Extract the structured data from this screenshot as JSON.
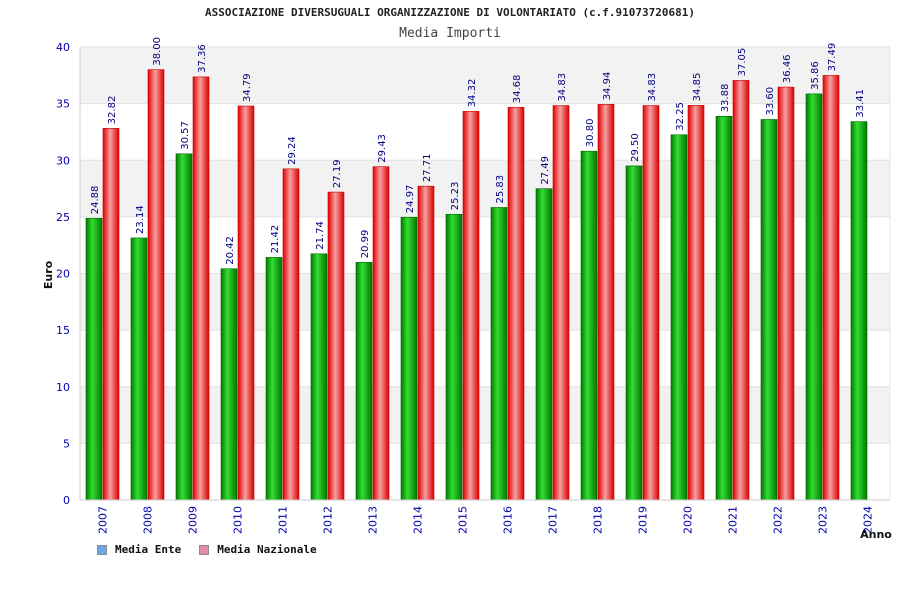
{
  "chart_data": {
    "type": "bar",
    "title": "ASSOCIAZIONE DIVERSUGUALI ORGANIZZAZIONE DI VOLONTARIATO (c.f.91073720681)",
    "subtitle": "Media Importi",
    "ylabel": "Euro",
    "xlabel": "Anno",
    "ylim": [
      0,
      40
    ],
    "yticks": [
      0,
      5,
      10,
      15,
      20,
      25,
      30,
      35,
      40
    ],
    "grid": true,
    "legend_position": "bottom-left",
    "categories": [
      "2007",
      "2008",
      "2009",
      "2010",
      "2011",
      "2012",
      "2013",
      "2014",
      "2015",
      "2016",
      "2017",
      "2018",
      "2019",
      "2020",
      "2021",
      "2022",
      "2023",
      "2024"
    ],
    "series": [
      {
        "name": "Media Ente",
        "legend_color": "#6fa8e8",
        "bar_color": "#00aa00",
        "values": [
          24.88,
          23.14,
          30.57,
          20.42,
          21.42,
          21.74,
          20.99,
          24.97,
          25.23,
          25.83,
          27.49,
          30.8,
          29.5,
          32.25,
          33.88,
          33.6,
          35.86,
          33.41
        ],
        "labels": [
          "24.88",
          "23.14",
          "30.57",
          "20.42",
          "21.42",
          "21.74",
          "20.99",
          "24.97",
          "25.23",
          "25.83",
          "27.49",
          "30.80",
          "29.50",
          "32.25",
          "33.88",
          "33.60",
          "35.86",
          "33.41"
        ]
      },
      {
        "name": "Media Nazionale",
        "legend_color": "#e58bb0",
        "bar_color": "#ee2222",
        "values": [
          32.82,
          38.0,
          37.36,
          34.79,
          29.24,
          27.19,
          29.43,
          27.71,
          34.32,
          34.68,
          34.83,
          34.94,
          34.83,
          34.85,
          37.05,
          36.46,
          37.49,
          null
        ],
        "labels": [
          "32.82",
          "38.00",
          "37.36",
          "34.79",
          "29.24",
          "27.19",
          "29.43",
          "27.71",
          "34.32",
          "34.68",
          "34.83",
          "34.94",
          "34.83",
          "34.85",
          "37.05",
          "36.46",
          "37.49",
          ""
        ]
      }
    ]
  }
}
